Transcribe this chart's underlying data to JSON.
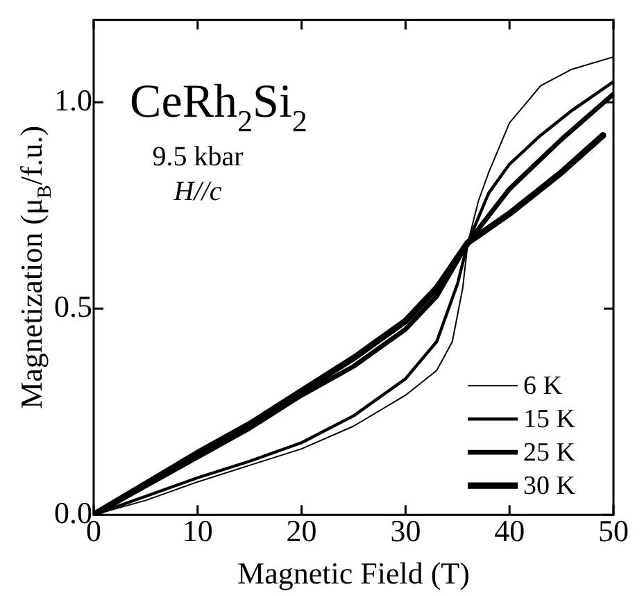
{
  "chart_data": {
    "type": "line",
    "xlabel": "Magnetic Field (T)",
    "ylabel": "Magnetization (μ$_{B}$/f.u.)",
    "annotations": [
      "CeRh$_{2}$Si$_{2}$",
      "9.5 kbar",
      "H//c"
    ],
    "xlim": [
      0,
      50
    ],
    "xticks": [
      0,
      10,
      20,
      30,
      40,
      50
    ],
    "ylim": [
      0,
      1.2
    ],
    "yticks": [
      {
        "value": 0,
        "label": "0.0"
      },
      {
        "value": 0.5,
        "label": "0.5"
      },
      {
        "value": 1,
        "label": "1.0"
      }
    ],
    "grid": false,
    "legend": "bottom right",
    "marker": "none",
    "line_style": "solid",
    "series": [
      {
        "name": "6 K",
        "color": "#000000",
        "x": [
          0,
          5,
          10,
          15,
          20,
          25,
          30,
          33,
          34.5,
          35.5,
          36,
          37,
          38,
          40,
          43,
          46,
          50
        ],
        "values": [
          0,
          0.035,
          0.08,
          0.12,
          0.16,
          0.215,
          0.29,
          0.35,
          0.42,
          0.55,
          0.66,
          0.76,
          0.83,
          0.95,
          1.04,
          1.08,
          1.11
        ]
      },
      {
        "name": "15 K",
        "color": "#000000",
        "x": [
          0,
          5,
          10,
          15,
          20,
          25,
          30,
          33,
          35,
          36,
          38,
          40,
          43,
          46,
          50
        ],
        "values": [
          0,
          0.045,
          0.09,
          0.13,
          0.175,
          0.24,
          0.33,
          0.42,
          0.56,
          0.66,
          0.78,
          0.85,
          0.92,
          0.98,
          1.05
        ]
      },
      {
        "name": "25 K",
        "color": "#000000",
        "x": [
          0,
          5,
          10,
          15,
          20,
          25,
          30,
          33,
          36,
          40,
          45,
          50
        ],
        "values": [
          0,
          0.07,
          0.14,
          0.21,
          0.29,
          0.36,
          0.45,
          0.53,
          0.66,
          0.79,
          0.91,
          1.02
        ]
      },
      {
        "name": "30 K",
        "color": "#000000",
        "x": [
          0,
          5,
          10,
          15,
          20,
          25,
          30,
          33,
          36,
          40,
          45,
          49
        ],
        "values": [
          0,
          0.075,
          0.15,
          0.22,
          0.3,
          0.38,
          0.47,
          0.55,
          0.66,
          0.73,
          0.83,
          0.92
        ]
      }
    ]
  }
}
